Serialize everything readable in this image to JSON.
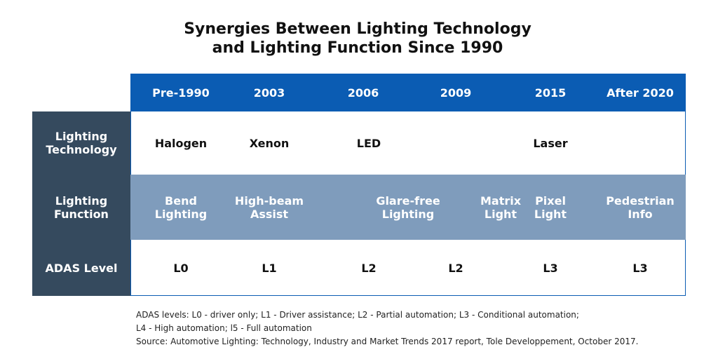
{
  "title_lines": [
    "Synergies Between Lighting Technology",
    "and Lighting Function Since 1990"
  ],
  "chart_data": {
    "type": "table",
    "columns": [
      "Pre-1990",
      "2003",
      "2006",
      "2009",
      "2015",
      "After 2020"
    ],
    "rows": [
      {
        "label": "Lighting Technology",
        "cells": [
          {
            "column": "Pre-1990",
            "value": "Halogen"
          },
          {
            "column": "2003",
            "value": "Xenon"
          },
          {
            "column": "2006",
            "value": "LED"
          },
          {
            "column": "2015",
            "value": "Laser"
          }
        ]
      },
      {
        "label": "Lighting Function",
        "cells": [
          {
            "column": "Pre-1990",
            "value": "Bend Lighting"
          },
          {
            "column": "2003",
            "value": "High-beam Assist"
          },
          {
            "column": "2006–2009",
            "value": "Glare-free Lighting"
          },
          {
            "column": "2009–2015",
            "value": "Matrix Light"
          },
          {
            "column": "2015",
            "value": "Pixel Light"
          },
          {
            "column": "After 2020",
            "value": "Pedestrian Info"
          }
        ]
      },
      {
        "label": "ADAS Level",
        "cells": [
          {
            "column": "Pre-1990",
            "value": "L0"
          },
          {
            "column": "2003",
            "value": "L1"
          },
          {
            "column": "2006",
            "value": "L2"
          },
          {
            "column": "2009",
            "value": "L2"
          },
          {
            "column": "2015",
            "value": "L3"
          },
          {
            "column": "After 2020",
            "value": "L3"
          }
        ]
      }
    ]
  },
  "display": {
    "row_labels": [
      [
        "Lighting",
        "Technology"
      ],
      [
        "Lighting",
        "Function"
      ],
      [
        "ADAS Level"
      ]
    ],
    "function_cells": [
      [
        "Bend",
        "Lighting"
      ],
      [
        "High-beam",
        "Assist"
      ],
      [
        "Glare-free",
        "Lighting"
      ],
      [
        "Matrix",
        "Light"
      ],
      [
        "Pixel",
        "Light"
      ],
      [
        "Pedestrian",
        "Info"
      ]
    ]
  },
  "notes": {
    "line1": "ADAS levels: L0 - driver only; L1 - Driver assistance; L2 - Partial automation; L3 - Conditional automation;",
    "line2": "L4 - High automation; l5 - Full automation",
    "source": "Source: Automotive Lighting: Technology, Industry and Market Trends 2017 report, Tole Developpement, October 2017."
  },
  "colors": {
    "header_blue": "#0b5cb3",
    "label_column": "#354a5e",
    "function_band": "#7f9cbc",
    "white": "#ffffff"
  }
}
